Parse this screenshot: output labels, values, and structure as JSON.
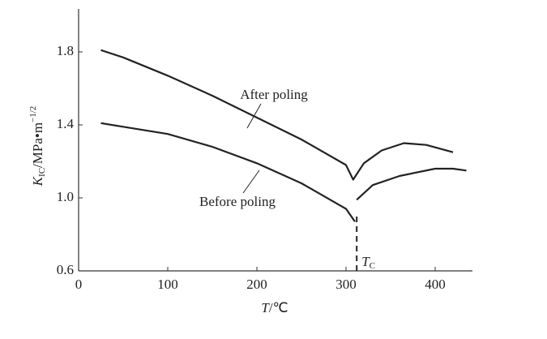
{
  "chart_data": {
    "type": "line",
    "ylabel_parts": [
      "K",
      "IC",
      "/MPa•m",
      "−1/2"
    ],
    "xlabel_parts": [
      "T",
      "/℃"
    ],
    "xlim": [
      0,
      440
    ],
    "xticks": [
      0,
      100,
      200,
      300,
      400
    ],
    "ylim": [
      0.6,
      2.0
    ],
    "yticks": [
      0.6,
      {
        "value": 1,
        "label": "1.0"
      },
      1.4,
      1.8
    ],
    "series": [
      {
        "name": "After poling",
        "color": "#222222",
        "x": [
          25,
          50,
          100,
          150,
          200,
          250,
          300,
          308,
          320,
          340,
          365,
          390,
          420
        ],
        "values": [
          1.81,
          1.77,
          1.67,
          1.56,
          1.44,
          1.32,
          1.18,
          1.1,
          1.19,
          1.26,
          1.3,
          1.29,
          1.25
        ]
      },
      {
        "name": "Before poling",
        "color": "#222222",
        "x": [
          25,
          50,
          100,
          150,
          200,
          250,
          300,
          310,
          311,
          312,
          330,
          360,
          400,
          420,
          435
        ],
        "values": [
          1.41,
          1.39,
          1.35,
          1.28,
          1.19,
          1.08,
          0.94,
          0.87,
          null,
          0.99,
          1.07,
          1.12,
          1.16,
          1.16,
          1.15
        ]
      }
    ],
    "tc": 312,
    "tc_label_parts": [
      "T",
      "C"
    ]
  }
}
